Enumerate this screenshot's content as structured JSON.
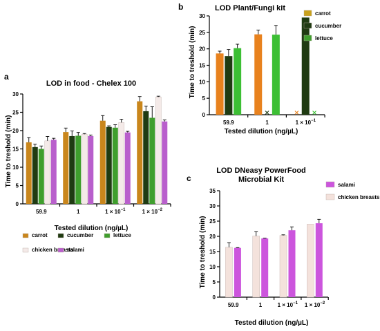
{
  "chart_data": [
    {
      "panel": "a",
      "type": "bar",
      "title": "LOD in food - Chelex 100",
      "xlabel": "Tested dilution (ng/µL)",
      "ylabel": "Time to treshold (min)",
      "ylim": [
        0,
        30
      ],
      "yticks": [
        0,
        5,
        10,
        15,
        20,
        25,
        30
      ],
      "categories": [
        {
          "label": "59.9"
        },
        {
          "label": "1"
        },
        {
          "label": "1 × 10",
          "sup": "−1"
        },
        {
          "label": "1 × 10",
          "sup": "−2"
        }
      ],
      "legend_position": "bottom",
      "series": [
        {
          "name": "carrot",
          "color": "#C9861C",
          "values": [
            16.8,
            19.6,
            22.7,
            28.0
          ],
          "errors": [
            1.3,
            1.1,
            1.4,
            1.3
          ]
        },
        {
          "name": "cucumber",
          "color": "#1F3B12",
          "values": [
            15.5,
            18.5,
            21.0,
            25.3
          ],
          "errors": [
            0.8,
            1.4,
            0.3,
            1.4
          ]
        },
        {
          "name": "lettuce",
          "color": "#3F9E2D",
          "values": [
            15.0,
            18.6,
            20.8,
            23.5
          ],
          "errors": [
            0.8,
            0.9,
            0.8,
            3.0
          ]
        },
        {
          "name": "chicken breasts",
          "color": "#F4EAE8",
          "values": [
            17.2,
            19.0,
            22.2,
            29.2
          ],
          "errors": [
            1.2,
            0.2,
            0.9,
            0.2
          ]
        },
        {
          "name": "salami",
          "color": "#B95FCC",
          "values": [
            17.5,
            18.5,
            19.5,
            22.5
          ],
          "errors": [
            0.4,
            0.3,
            0.3,
            0.4
          ]
        }
      ]
    },
    {
      "panel": "b",
      "type": "bar",
      "title": "LOD Plant/Fungi kit",
      "xlabel": "Tested dilution (ng/µL)",
      "ylabel": "Time to treshold (min)",
      "ylim": [
        0,
        30
      ],
      "yticks": [
        0,
        5,
        10,
        15,
        20,
        25,
        30
      ],
      "categories": [
        {
          "label": "59.9"
        },
        {
          "label": "1"
        },
        {
          "label": "1 × 10",
          "sup": "−1"
        }
      ],
      "legend_position": "top-right",
      "missing_marker": "x",
      "series": [
        {
          "name": "carrot",
          "color": "#E8821E",
          "values": [
            18.6,
            24.4,
            null
          ],
          "errors": [
            0.7,
            1.3,
            null
          ]
        },
        {
          "name": "cucumber",
          "color": "#1F3B12",
          "values": [
            17.8,
            null,
            29.5
          ],
          "errors": [
            2.0,
            null,
            0
          ]
        },
        {
          "name": "lettuce",
          "color": "#3CBF34",
          "values": [
            20.2,
            24.3,
            null
          ],
          "errors": [
            1.2,
            2.8,
            null
          ]
        }
      ],
      "legend": [
        {
          "name": "carrot",
          "color": "#C9A21C"
        },
        {
          "name": "cucumber",
          "color": "#1F3B12"
        },
        {
          "name": "lettuce",
          "color": "#3F9E2D"
        }
      ]
    },
    {
      "panel": "c",
      "type": "bar",
      "title": "LOD DNeasy PowerFood Microbial Kit",
      "title_lines": [
        "LOD DNeasy PowerFood",
        "Microbial Kit"
      ],
      "xlabel": "Tested dilution (ng/µL)",
      "ylabel": "Time to treshold (min)",
      "ylim": [
        0,
        35
      ],
      "yticks": [
        0,
        5,
        10,
        15,
        20,
        25,
        30,
        35
      ],
      "categories": [
        {
          "label": "59.9"
        },
        {
          "label": "1"
        },
        {
          "label": "1 × 10",
          "sup": "−1"
        },
        {
          "label": "1 × 10",
          "sup": "−2"
        }
      ],
      "legend_position": "top-right",
      "series": [
        {
          "name": "chicken breasts",
          "color": "#F4E2DC",
          "values": [
            16.4,
            20.1,
            20.3,
            24.0
          ],
          "errors": [
            1.5,
            1.4,
            0.2,
            0
          ]
        },
        {
          "name": "salami",
          "color": "#CC55DD",
          "values": [
            16.2,
            19.3,
            22.0,
            24.3
          ],
          "errors": [
            0.1,
            0.1,
            1.1,
            1.3
          ]
        }
      ],
      "legend": [
        {
          "name": "salami",
          "color": "#CC55DD"
        },
        {
          "name": "chicken breasts",
          "color": "#F4E2DC"
        }
      ]
    }
  ]
}
